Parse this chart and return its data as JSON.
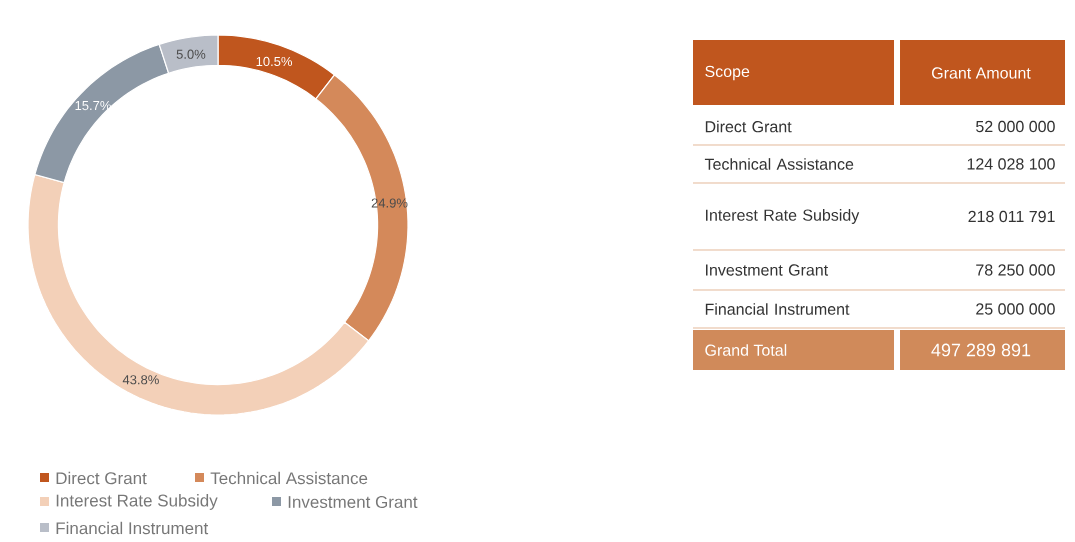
{
  "chart_data": {
    "type": "donut",
    "categories": [
      "Direct Grant",
      "Technical Assistance",
      "Interest Rate Subsidy",
      "Investment Grant",
      "Financial Instrument"
    ],
    "values": [
      10.5,
      24.9,
      43.8,
      15.7,
      5.0
    ],
    "colors": [
      "#c0561e",
      "#d4895a",
      "#f3d0b8",
      "#8c98a5",
      "#b9bec8"
    ],
    "value_labels": [
      "10.5%",
      "24.9%",
      "43.8%",
      "15.7%",
      "5.0%"
    ],
    "legend": "bottom left",
    "annotations": [
      "Scope",
      "Grant Amount",
      "52 000 000",
      "124 028 100",
      "218 011 791",
      "78 250 000",
      "25 000 000",
      "Grand Total",
      "497 289 891"
    ]
  }
}
